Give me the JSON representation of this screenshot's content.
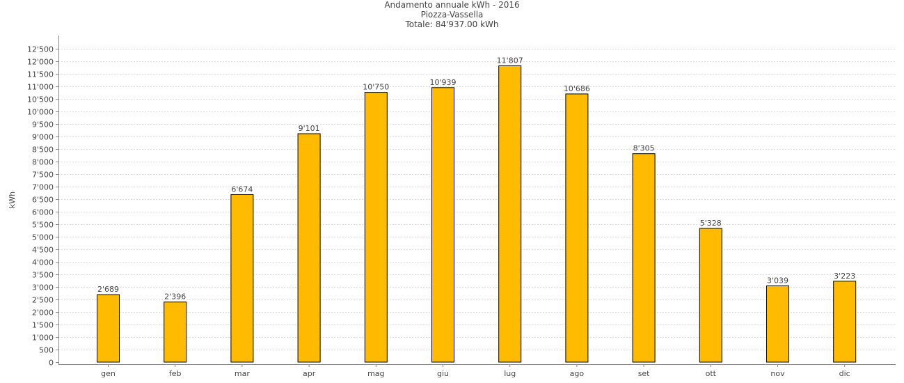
{
  "chart_data": {
    "type": "bar",
    "title": "Andamento annuale kWh - 2016",
    "subtitle": "Piozza-Vassella",
    "total_label": "Totale: 84'937.00 kWh",
    "xlabel": "",
    "ylabel": "kWh",
    "categories": [
      "gen",
      "feb",
      "mar",
      "apr",
      "mag",
      "giu",
      "lug",
      "ago",
      "set",
      "ott",
      "nov",
      "dic"
    ],
    "values": [
      2689,
      2396,
      6674,
      9101,
      10750,
      10939,
      11807,
      10686,
      8305,
      5328,
      3039,
      3223
    ],
    "value_labels": [
      "2'689",
      "2'396",
      "6'674",
      "9'101",
      "10'750",
      "10'939",
      "11'807",
      "10'686",
      "8'305",
      "5'328",
      "3'039",
      "3'223"
    ],
    "ylim": [
      0,
      13000
    ],
    "yticks": [
      0,
      500,
      1000,
      1500,
      2000,
      2500,
      3000,
      3500,
      4000,
      4500,
      5000,
      5500,
      6000,
      6500,
      7000,
      7500,
      8000,
      8500,
      9000,
      9500,
      10000,
      10500,
      11000,
      11500,
      12000,
      12500
    ],
    "ytick_labels": [
      "0",
      "500",
      "1'000",
      "1'500",
      "2'000",
      "2'500",
      "3'000",
      "3'500",
      "4'000",
      "4'500",
      "5'000",
      "5'500",
      "6'000",
      "6'500",
      "7'000",
      "7'500",
      "8'000",
      "8'500",
      "9'000",
      "9'500",
      "10'000",
      "10'500",
      "11'000",
      "11'500",
      "12'000",
      "12'500"
    ],
    "grid": true,
    "legend": "none",
    "colors": {
      "bar": "#ffbb00",
      "bar_stroke": "#000000",
      "grid": "#dddddd",
      "axis": "#888888"
    }
  }
}
